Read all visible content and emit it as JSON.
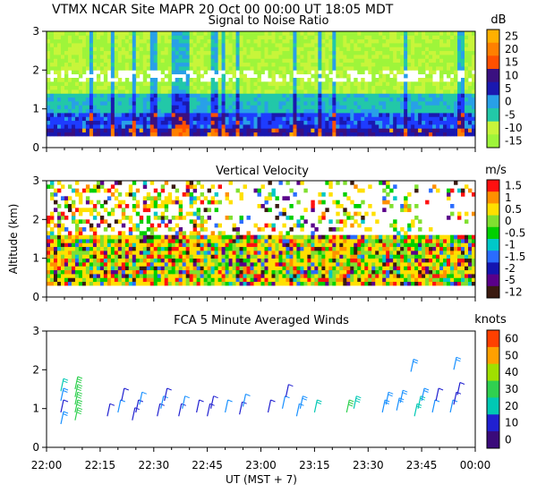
{
  "header": "VTMX  NCAR Site  MAPR 20 Oct 00  00:00 UT  18:05  MDT",
  "colors": {
    "snr_palette": [
      "#9ef53a",
      "#c8f53a",
      "#22c8a8",
      "#28a0e8",
      "#1e3cff",
      "#1a18b0",
      "#3a1080",
      "#ff5000",
      "#ff8000",
      "#ffb000"
    ],
    "vel_palette": [
      "#3a1a10",
      "#5a008a",
      "#1414b0",
      "#2a6cff",
      "#00c8c8",
      "#00d000",
      "#80e030",
      "#ffe000",
      "#ff9000",
      "#ff1010"
    ],
    "wind_palette": [
      "#3a0a7a",
      "#2020d0",
      "#1890ff",
      "#00c8b4",
      "#30d050",
      "#a0e000",
      "#e0e000",
      "#ffa000",
      "#ff4000"
    ]
  },
  "chart_data": [
    {
      "type": "heatmap",
      "title": "Signal to Noise Ratio",
      "colorbar": {
        "unit": "dB",
        "labels": [
          "25",
          "20",
          "15",
          "10",
          "5",
          "0",
          "-5",
          "-10",
          "-15"
        ]
      },
      "xlabel": "",
      "ylabel": "",
      "y_ticks": [
        "0",
        "1",
        "2",
        "3"
      ],
      "ylim": [
        0,
        3
      ],
      "xlim": [
        0,
        120
      ],
      "x_ticks": [
        "22:00",
        "22:15",
        "22:30",
        "22:45",
        "23:00",
        "23:15",
        "23:30",
        "23:45",
        "00:00"
      ],
      "data_range": [
        0.3,
        3.0
      ]
    },
    {
      "type": "heatmap",
      "title": "Vertical Velocity",
      "colorbar": {
        "unit": "m/s",
        "labels": [
          "1.5",
          "1",
          "0.5",
          "0",
          "-0.5",
          "-1",
          "-1.5",
          "-2",
          "-5",
          "-12"
        ]
      },
      "xlabel": "",
      "ylabel": "Altitude (km)",
      "y_ticks": [
        "0",
        "1",
        "2",
        "3"
      ],
      "ylim": [
        0,
        3
      ],
      "xlim": [
        0,
        120
      ],
      "x_ticks": [
        "22:00",
        "22:15",
        "22:30",
        "22:45",
        "23:00",
        "23:15",
        "23:30",
        "23:45",
        "00:00"
      ],
      "data_range": [
        0.3,
        3.0
      ]
    },
    {
      "type": "scatter",
      "title": "FCA 5 Minute Averaged Winds",
      "colorbar": {
        "unit": "knots",
        "labels": [
          "60",
          "50",
          "40",
          "30",
          "20",
          "10",
          "0"
        ]
      },
      "xlabel": "UT  (MST + 7)",
      "ylabel": "",
      "y_ticks": [
        "0",
        "1",
        "2",
        "3"
      ],
      "ylim": [
        0,
        3
      ],
      "xlim": [
        0,
        120
      ],
      "x_ticks": [
        "22:00",
        "22:15",
        "22:30",
        "22:45",
        "23:00",
        "23:15",
        "23:30",
        "23:45",
        "00:00"
      ],
      "winds": [
        {
          "t": 4,
          "z": 0.6,
          "speed": 15
        },
        {
          "t": 4,
          "z": 0.9,
          "speed": 12
        },
        {
          "t": 4,
          "z": 1.2,
          "speed": 18
        },
        {
          "t": 4,
          "z": 1.45,
          "speed": 22
        },
        {
          "t": 8,
          "z": 0.7,
          "speed": 28
        },
        {
          "t": 8,
          "z": 0.9,
          "speed": 32
        },
        {
          "t": 8,
          "z": 1.1,
          "speed": 30
        },
        {
          "t": 8,
          "z": 1.3,
          "speed": 34
        },
        {
          "t": 8,
          "z": 1.5,
          "speed": 30
        },
        {
          "t": 17,
          "z": 0.8,
          "speed": 12
        },
        {
          "t": 20,
          "z": 0.9,
          "speed": 14
        },
        {
          "t": 21,
          "z": 1.2,
          "speed": 12
        },
        {
          "t": 24,
          "z": 0.7,
          "speed": 10
        },
        {
          "t": 25,
          "z": 0.9,
          "speed": 12
        },
        {
          "t": 26,
          "z": 1.1,
          "speed": 14
        },
        {
          "t": 31,
          "z": 0.8,
          "speed": 12
        },
        {
          "t": 32,
          "z": 1.0,
          "speed": 14
        },
        {
          "t": 33,
          "z": 1.2,
          "speed": 12
        },
        {
          "t": 37,
          "z": 0.8,
          "speed": 12
        },
        {
          "t": 38,
          "z": 1.0,
          "speed": 14
        },
        {
          "t": 42,
          "z": 0.9,
          "speed": 12
        },
        {
          "t": 45,
          "z": 0.8,
          "speed": 12
        },
        {
          "t": 46,
          "z": 1.0,
          "speed": 12
        },
        {
          "t": 50,
          "z": 0.9,
          "speed": 14
        },
        {
          "t": 54,
          "z": 0.85,
          "speed": 12
        },
        {
          "t": 55,
          "z": 1.05,
          "speed": 14
        },
        {
          "t": 62,
          "z": 0.9,
          "speed": 12
        },
        {
          "t": 66,
          "z": 1.0,
          "speed": 14
        },
        {
          "t": 67,
          "z": 1.3,
          "speed": 12
        },
        {
          "t": 70,
          "z": 0.8,
          "speed": 14
        },
        {
          "t": 71,
          "z": 1.0,
          "speed": 16
        },
        {
          "t": 75,
          "z": 0.9,
          "speed": 24
        },
        {
          "t": 84,
          "z": 0.9,
          "speed": 28
        },
        {
          "t": 86,
          "z": 1.0,
          "speed": 26
        },
        {
          "t": 94,
          "z": 0.9,
          "speed": 18
        },
        {
          "t": 95,
          "z": 1.1,
          "speed": 20
        },
        {
          "t": 98,
          "z": 0.95,
          "speed": 20
        },
        {
          "t": 99,
          "z": 1.15,
          "speed": 18
        },
        {
          "t": 103,
          "z": 0.8,
          "speed": 22
        },
        {
          "t": 104,
          "z": 1.0,
          "speed": 24
        },
        {
          "t": 105,
          "z": 1.2,
          "speed": 20
        },
        {
          "t": 108,
          "z": 0.9,
          "speed": 14
        },
        {
          "t": 109,
          "z": 1.2,
          "speed": 12
        },
        {
          "t": 113,
          "z": 0.9,
          "speed": 14
        },
        {
          "t": 114,
          "z": 1.1,
          "speed": 12
        },
        {
          "t": 115,
          "z": 1.35,
          "speed": 12
        },
        {
          "t": 102,
          "z": 1.95,
          "speed": 18
        },
        {
          "t": 114,
          "z": 2.0,
          "speed": 20
        }
      ]
    }
  ]
}
